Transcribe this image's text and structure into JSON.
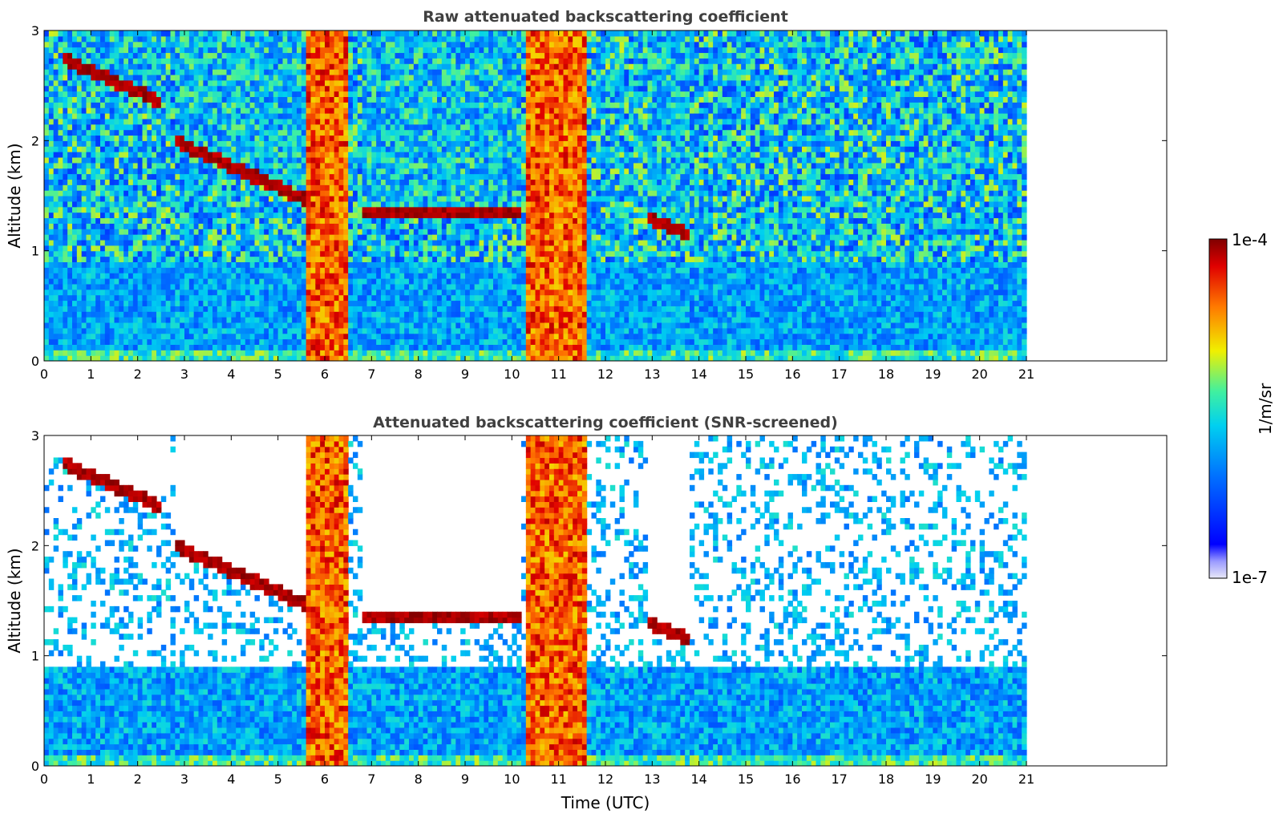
{
  "chart_data": [
    {
      "type": "heatmap",
      "title": "Raw attenuated backscattering coefficient",
      "xlabel": "",
      "ylabel": "Altitude (km)",
      "xlim": [
        0,
        24
      ],
      "ylim": [
        0,
        3
      ],
      "x_ticks": [
        0,
        1,
        2,
        3,
        4,
        5,
        6,
        7,
        8,
        9,
        10,
        11,
        12,
        13,
        14,
        15,
        16,
        17,
        18,
        19,
        20,
        21
      ],
      "y_ticks": [
        0,
        1,
        2,
        3
      ],
      "data_end_time": 21,
      "features": [
        {
          "kind": "cloud_layer",
          "from_time": 0.4,
          "to_time": 2.5,
          "altitude_start": 2.75,
          "altitude_end": 2.35
        },
        {
          "kind": "cloud_layer",
          "from_time": 2.8,
          "to_time": 6.2,
          "altitude_start": 2.0,
          "altitude_end": 1.35
        },
        {
          "kind": "cloud_layer",
          "from_time": 6.8,
          "to_time": 10.2,
          "altitude_start": 1.35,
          "altitude_end": 1.35
        },
        {
          "kind": "cloud_layer",
          "from_time": 12.9,
          "to_time": 13.8,
          "altitude_start": 1.3,
          "altitude_end": 1.15
        },
        {
          "kind": "precipitation",
          "from_time": 5.6,
          "to_time": 6.5
        },
        {
          "kind": "precipitation",
          "from_time": 10.3,
          "to_time": 11.6
        }
      ]
    },
    {
      "type": "heatmap",
      "title": "Attenuated backscattering coefficient (SNR-screened)",
      "xlabel": "Time (UTC)",
      "ylabel": "Altitude (km)",
      "xlim": [
        0,
        24
      ],
      "ylim": [
        0,
        3
      ],
      "x_ticks": [
        0,
        1,
        2,
        3,
        4,
        5,
        6,
        7,
        8,
        9,
        10,
        11,
        12,
        13,
        14,
        15,
        16,
        17,
        18,
        19,
        20,
        21
      ],
      "y_ticks": [
        0,
        1,
        2,
        3
      ],
      "data_end_time": 21
    }
  ],
  "colorbar": {
    "label": "1/m/sr",
    "max_label": "1e-4",
    "min_label": "1e-7",
    "colormap": "jet",
    "min": 1e-07,
    "max": 0.0001
  }
}
